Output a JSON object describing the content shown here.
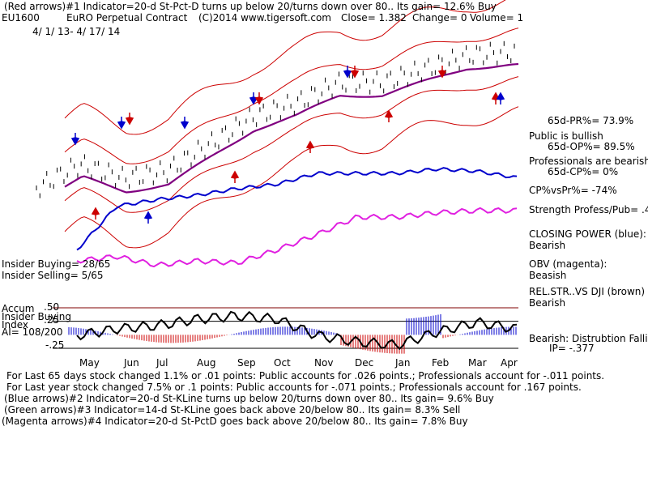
{
  "header": {
    "line1": "(Red arrows)#1 Indicator=20-d St-Pct-D turns up below 20/turns down over 80.. Its gain= 12.6% Buy",
    "symbol": "EU1600",
    "contract": "EuRO Perpetual Contract",
    "copyright": "(C)2014 www.tigersoft.com",
    "close": "Close= 1.382",
    "change": "Change= 0",
    "volume": "Volume= 1",
    "date_range": "4/ 1/ 13- 4/ 17/ 14"
  },
  "side_labels": {
    "pr": "65d-PR%= 73.9%",
    "public": "Public is bullish",
    "op": "65d-OP%= 89.5%",
    "prof": "Professionals are bearish",
    "cp": "65d-CP%= 0%",
    "cpvspr": "CP%vsPr%= -74%",
    "strength": "Strength Profess/Pub= .4",
    "closing_power": "CLOSING POWER (blue):",
    "closing_power_state": "Bearish",
    "obv": "OBV (magenta):",
    "obv_state": "Beasish",
    "relstr": "REL.STR..VS DJI (brown)",
    "relstr_state": "Bearish",
    "dist": "Bearish: Distrubtion Falling",
    "ip": "IP= -.377"
  },
  "left_labels": {
    "insider_buying": "Insider Buying= 28/65",
    "insider_selling": "Insider Selling= 5/65",
    "accum": "Accum",
    "accum_val": ".50",
    "insider_buying2": "Insider Buying",
    "index": "Index",
    "index_val": ".25",
    "ai": "AI= 108/200",
    "neg": "-.25"
  },
  "footer": {
    "line1": "For Last 65 days stock changed  1.1% or  .01 points:  Public accounts for  .026 points.;  Professionals account for -.011 points.",
    "line2": "For Last year stock changed  7.5% or  .1 points:  Public accounts for -.071 points.;  Professionals account for  .167 points.",
    "line3": "(Blue arrows)#2 Indicator=20-d St-KLine turns up below 20/turns down over 80.. Its gain= 9.6% Buy",
    "line4": "(Green arrows)#3 Indicator=14-d St-KLine goes back above 20/below 80.. Its gain= 8.3% Sell",
    "line5": "(Magenta arrows)#4 Indicator=20-d St-PctD goes back above 20/below 80.. Its gain= 7.8% Buy"
  },
  "colors": {
    "band": "#cc0000",
    "ma": "#800080",
    "closing_power": "#0000cc",
    "obv": "#e020e0",
    "rel_str": "#000000",
    "accum_pos": "#0000cc",
    "accum_neg": "#cc0000"
  },
  "chart_data": {
    "type": "line",
    "months": [
      "May",
      "Jun",
      "Jul",
      "Aug",
      "Sep",
      "Oct",
      "Nov",
      "Dec",
      "Jan",
      "Feb",
      "Mar",
      "Apr"
    ],
    "price": [
      1.283,
      1.3,
      1.29,
      1.295,
      1.315,
      1.335,
      1.345,
      1.36,
      1.36,
      1.37,
      1.38,
      1.382
    ],
    "closing_power": [
      0.45,
      0.65,
      0.68,
      0.7,
      0.73,
      0.75,
      0.8,
      0.8,
      0.8,
      0.82,
      0.81,
      0.78
    ],
    "obv": [
      0.4,
      0.42,
      0.38,
      0.4,
      0.39,
      0.45,
      0.52,
      0.6,
      0.6,
      0.62,
      0.63,
      0.63
    ],
    "rel_str": [
      0.2,
      0.3,
      0.35,
      0.45,
      0.5,
      0.45,
      0.2,
      0.1,
      0.05,
      0.25,
      0.4,
      0.3
    ],
    "accum_levels": [
      0.5,
      0.25,
      -0.25
    ],
    "ip": -0.377
  }
}
